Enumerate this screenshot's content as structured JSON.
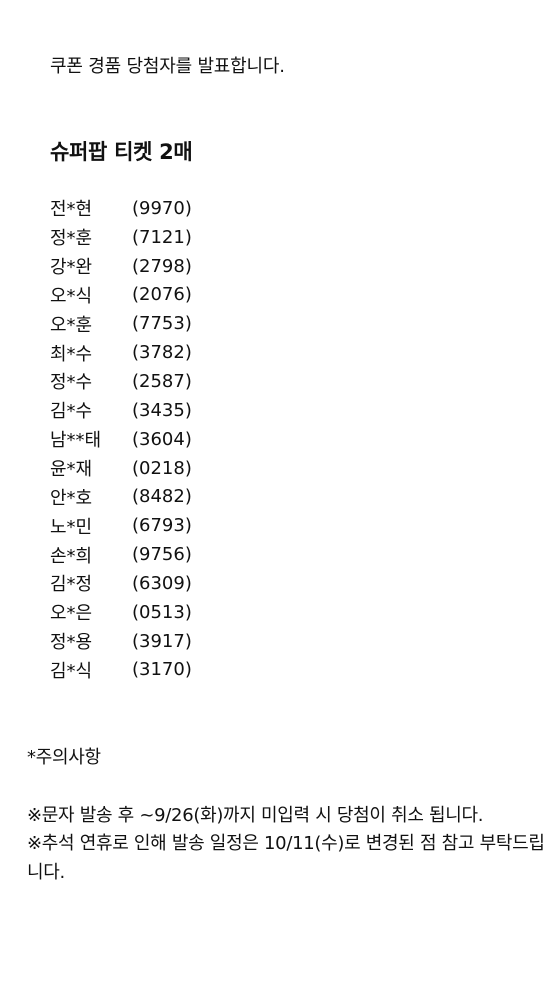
{
  "announcement": "쿠폰 경품 당첨자를 발표합니다.",
  "prize_title": "슈퍼팝 티켓 2매",
  "winners": [
    {
      "name": "전*현",
      "code": "(9970)"
    },
    {
      "name": "정*훈",
      "code": "(7121)"
    },
    {
      "name": "강*완",
      "code": "(2798)"
    },
    {
      "name": "오*식",
      "code": "(2076)"
    },
    {
      "name": "오*훈",
      "code": "(7753)"
    },
    {
      "name": "최*수",
      "code": "(3782)"
    },
    {
      "name": "정*수",
      "code": "(2587)"
    },
    {
      "name": "김*수",
      "code": "(3435)"
    },
    {
      "name": "남**태",
      "code": "(3604)"
    },
    {
      "name": "윤*재",
      "code": "(0218)"
    },
    {
      "name": "안*호",
      "code": "(8482)"
    },
    {
      "name": "노*민",
      "code": "(6793)"
    },
    {
      "name": "손*희",
      "code": "(9756)"
    },
    {
      "name": "김*정",
      "code": "(6309)"
    },
    {
      "name": "오*은",
      "code": "(0513)"
    },
    {
      "name": "정*용",
      "code": "(3917)"
    },
    {
      "name": "김*식",
      "code": "(3170)"
    }
  ],
  "notice": {
    "heading": "*주의사항",
    "lines": [
      "※문자 발송 후 ~9/26(화)까지 미입력 시 당첨이 취소 됩니다.",
      "※추석 연휴로 인해 발송 일정은 10/11(수)로 변경된 점 참고 부탁드립니다."
    ]
  }
}
